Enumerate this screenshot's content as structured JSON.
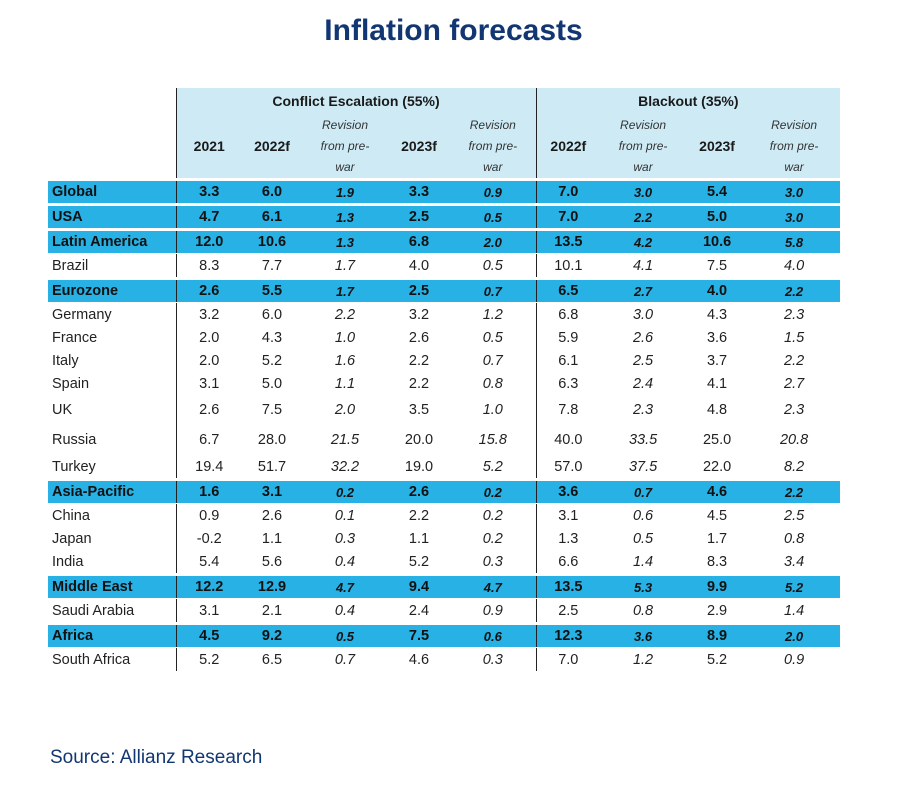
{
  "title": "Inflation forecasts",
  "source": "Source: Allianz Research",
  "chart_data": {
    "type": "table",
    "scenarios": [
      {
        "label": "Conflict Escalation (55%)"
      },
      {
        "label": "Blackout (35%)"
      }
    ],
    "columns": {
      "y2021": "2021",
      "y2022f": "2022f",
      "y2023f": "2023f",
      "revision_lines": [
        "Revision",
        "from pre-",
        "war"
      ]
    },
    "rows": [
      {
        "name": "Global",
        "type": "region",
        "values": [
          "3.3",
          "6.0",
          "1.9",
          "3.3",
          "0.9",
          "7.0",
          "3.0",
          "5.4",
          "3.0"
        ]
      },
      {
        "name": "USA",
        "type": "region",
        "values": [
          "4.7",
          "6.1",
          "1.3",
          "2.5",
          "0.5",
          "7.0",
          "2.2",
          "5.0",
          "3.0"
        ]
      },
      {
        "name": "Latin America",
        "type": "region",
        "values": [
          "12.0",
          "10.6",
          "1.3",
          "6.8",
          "2.0",
          "13.5",
          "4.2",
          "10.6",
          "5.8"
        ]
      },
      {
        "name": "Brazil",
        "type": "country",
        "values": [
          "8.3",
          "7.7",
          "1.7",
          "4.0",
          "0.5",
          "10.1",
          "4.1",
          "7.5",
          "4.0"
        ]
      },
      {
        "name": "Eurozone",
        "type": "region",
        "values": [
          "2.6",
          "5.5",
          "1.7",
          "2.5",
          "0.7",
          "6.5",
          "2.7",
          "4.0",
          "2.2"
        ]
      },
      {
        "name": "Germany",
        "type": "country",
        "values": [
          "3.2",
          "6.0",
          "2.2",
          "3.2",
          "1.2",
          "6.8",
          "3.0",
          "4.3",
          "2.3"
        ]
      },
      {
        "name": "France",
        "type": "country",
        "values": [
          "2.0",
          "4.3",
          "1.0",
          "2.6",
          "0.5",
          "5.9",
          "2.6",
          "3.6",
          "1.5"
        ]
      },
      {
        "name": "Italy",
        "type": "country",
        "values": [
          "2.0",
          "5.2",
          "1.6",
          "2.2",
          "0.7",
          "6.1",
          "2.5",
          "3.7",
          "2.2"
        ]
      },
      {
        "name": "Spain",
        "type": "country",
        "values": [
          "3.1",
          "5.0",
          "1.1",
          "2.2",
          "0.8",
          "6.3",
          "2.4",
          "4.1",
          "2.7"
        ]
      },
      {
        "name": "UK",
        "type": "country-tall",
        "values": [
          "2.6",
          "7.5",
          "2.0",
          "3.5",
          "1.0",
          "7.8",
          "2.3",
          "4.8",
          "2.3"
        ]
      },
      {
        "name": "Russia",
        "type": "country-tall",
        "values": [
          "6.7",
          "28.0",
          "21.5",
          "20.0",
          "15.8",
          "40.0",
          "33.5",
          "25.0",
          "20.8"
        ]
      },
      {
        "name": "Turkey",
        "type": "country",
        "values": [
          "19.4",
          "51.7",
          "32.2",
          "19.0",
          "5.2",
          "57.0",
          "37.5",
          "22.0",
          "8.2"
        ]
      },
      {
        "name": "Asia-Pacific",
        "type": "region",
        "values": [
          "1.6",
          "3.1",
          "0.2",
          "2.6",
          "0.2",
          "3.6",
          "0.7",
          "4.6",
          "2.2"
        ]
      },
      {
        "name": "China",
        "type": "country",
        "values": [
          "0.9",
          "2.6",
          "0.1",
          "2.2",
          "0.2",
          "3.1",
          "0.6",
          "4.5",
          "2.5"
        ]
      },
      {
        "name": "Japan",
        "type": "country",
        "values": [
          "-0.2",
          "1.1",
          "0.3",
          "1.1",
          "0.2",
          "1.3",
          "0.5",
          "1.7",
          "0.8"
        ]
      },
      {
        "name": "India",
        "type": "country",
        "values": [
          "5.4",
          "5.6",
          "0.4",
          "5.2",
          "0.3",
          "6.6",
          "1.4",
          "8.3",
          "3.4"
        ]
      },
      {
        "name": "Middle East",
        "type": "region",
        "values": [
          "12.2",
          "12.9",
          "4.7",
          "9.4",
          "4.7",
          "13.5",
          "5.3",
          "9.9",
          "5.2"
        ]
      },
      {
        "name": "Saudi Arabia",
        "type": "country",
        "values": [
          "3.1",
          "2.1",
          "0.4",
          "2.4",
          "0.9",
          "2.5",
          "0.8",
          "2.9",
          "1.4"
        ]
      },
      {
        "name": "Africa",
        "type": "region",
        "values": [
          "4.5",
          "9.2",
          "0.5",
          "7.5",
          "0.6",
          "12.3",
          "3.6",
          "8.9",
          "2.0"
        ]
      },
      {
        "name": "South Africa",
        "type": "country",
        "values": [
          "5.2",
          "6.5",
          "0.7",
          "4.6",
          "0.3",
          "7.0",
          "1.2",
          "5.2",
          "0.9"
        ]
      }
    ]
  },
  "colors": {
    "title": "#123672",
    "region_band": "#27b1e4",
    "header_shade": "#cdeaf5"
  }
}
